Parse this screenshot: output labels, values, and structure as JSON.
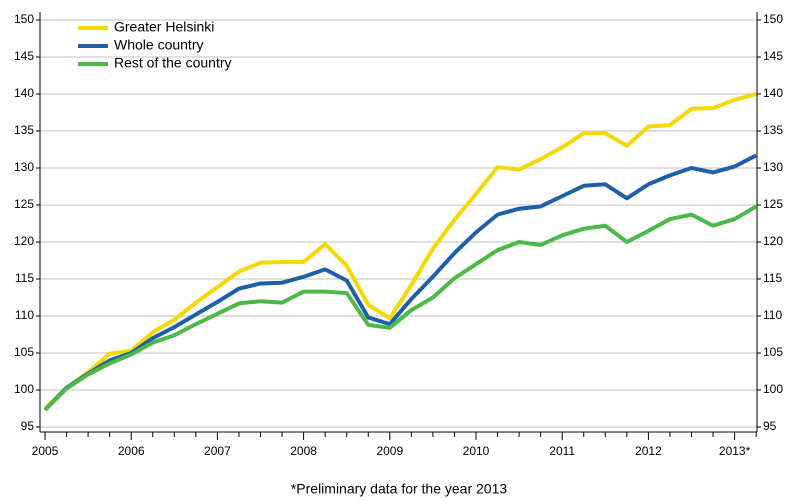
{
  "chart_data": {
    "type": "line",
    "categories": [
      "2005",
      null,
      null,
      null,
      "2006",
      null,
      null,
      null,
      "2007",
      null,
      null,
      null,
      "2008",
      null,
      null,
      null,
      "2009",
      null,
      null,
      null,
      "2010",
      null,
      null,
      null,
      "2011",
      null,
      null,
      null,
      "2012",
      null,
      null,
      null,
      "2013*",
      null
    ],
    "series": [
      {
        "name": "Greater Helsinki",
        "color": "#f5d800",
        "values": [
          97.5,
          100.3,
          102.4,
          104.9,
          105.3,
          107.8,
          109.5,
          111.8,
          113.9,
          116.0,
          117.2,
          117.3,
          117.3,
          119.7,
          116.8,
          111.5,
          109.7,
          114.2,
          119.1,
          123.0,
          126.5,
          130.1,
          129.8,
          131.2,
          132.8,
          134.7,
          134.7,
          133.0,
          135.6,
          135.8,
          138.0,
          138.1,
          139.2,
          140.0
        ]
      },
      {
        "name": "Whole country",
        "color": "#1f5fa8",
        "values": [
          97.3,
          100.3,
          102.2,
          104.0,
          105.0,
          107.0,
          108.5,
          110.2,
          111.9,
          113.7,
          114.4,
          114.5,
          115.3,
          116.3,
          114.8,
          109.8,
          108.9,
          112.3,
          115.3,
          118.5,
          121.3,
          123.7,
          124.5,
          124.8,
          126.2,
          127.6,
          127.8,
          125.9,
          127.8,
          129.0,
          130.0,
          129.4,
          130.2,
          131.7
        ]
      },
      {
        "name": "Rest of the country",
        "color": "#4cb848",
        "values": [
          97.3,
          100.2,
          102.1,
          103.6,
          104.8,
          106.4,
          107.4,
          108.9,
          110.3,
          111.7,
          112.0,
          111.8,
          113.3,
          113.3,
          113.1,
          108.8,
          108.4,
          110.8,
          112.5,
          115.1,
          117.0,
          118.9,
          120.0,
          119.6,
          120.9,
          121.8,
          122.2,
          120.0,
          121.5,
          123.1,
          123.7,
          122.2,
          123.1,
          124.8
        ]
      }
    ],
    "ylim": [
      95,
      150
    ],
    "yticks": [
      95,
      100,
      105,
      110,
      115,
      120,
      125,
      130,
      135,
      140,
      145,
      150
    ],
    "y2lim": [
      95,
      150
    ],
    "y2ticks": [
      95,
      100,
      105,
      110,
      115,
      120,
      125,
      130,
      135,
      140,
      145,
      150
    ],
    "grid": true,
    "legend": "top-left",
    "footnote": "*Preliminary data for the year 2013"
  }
}
